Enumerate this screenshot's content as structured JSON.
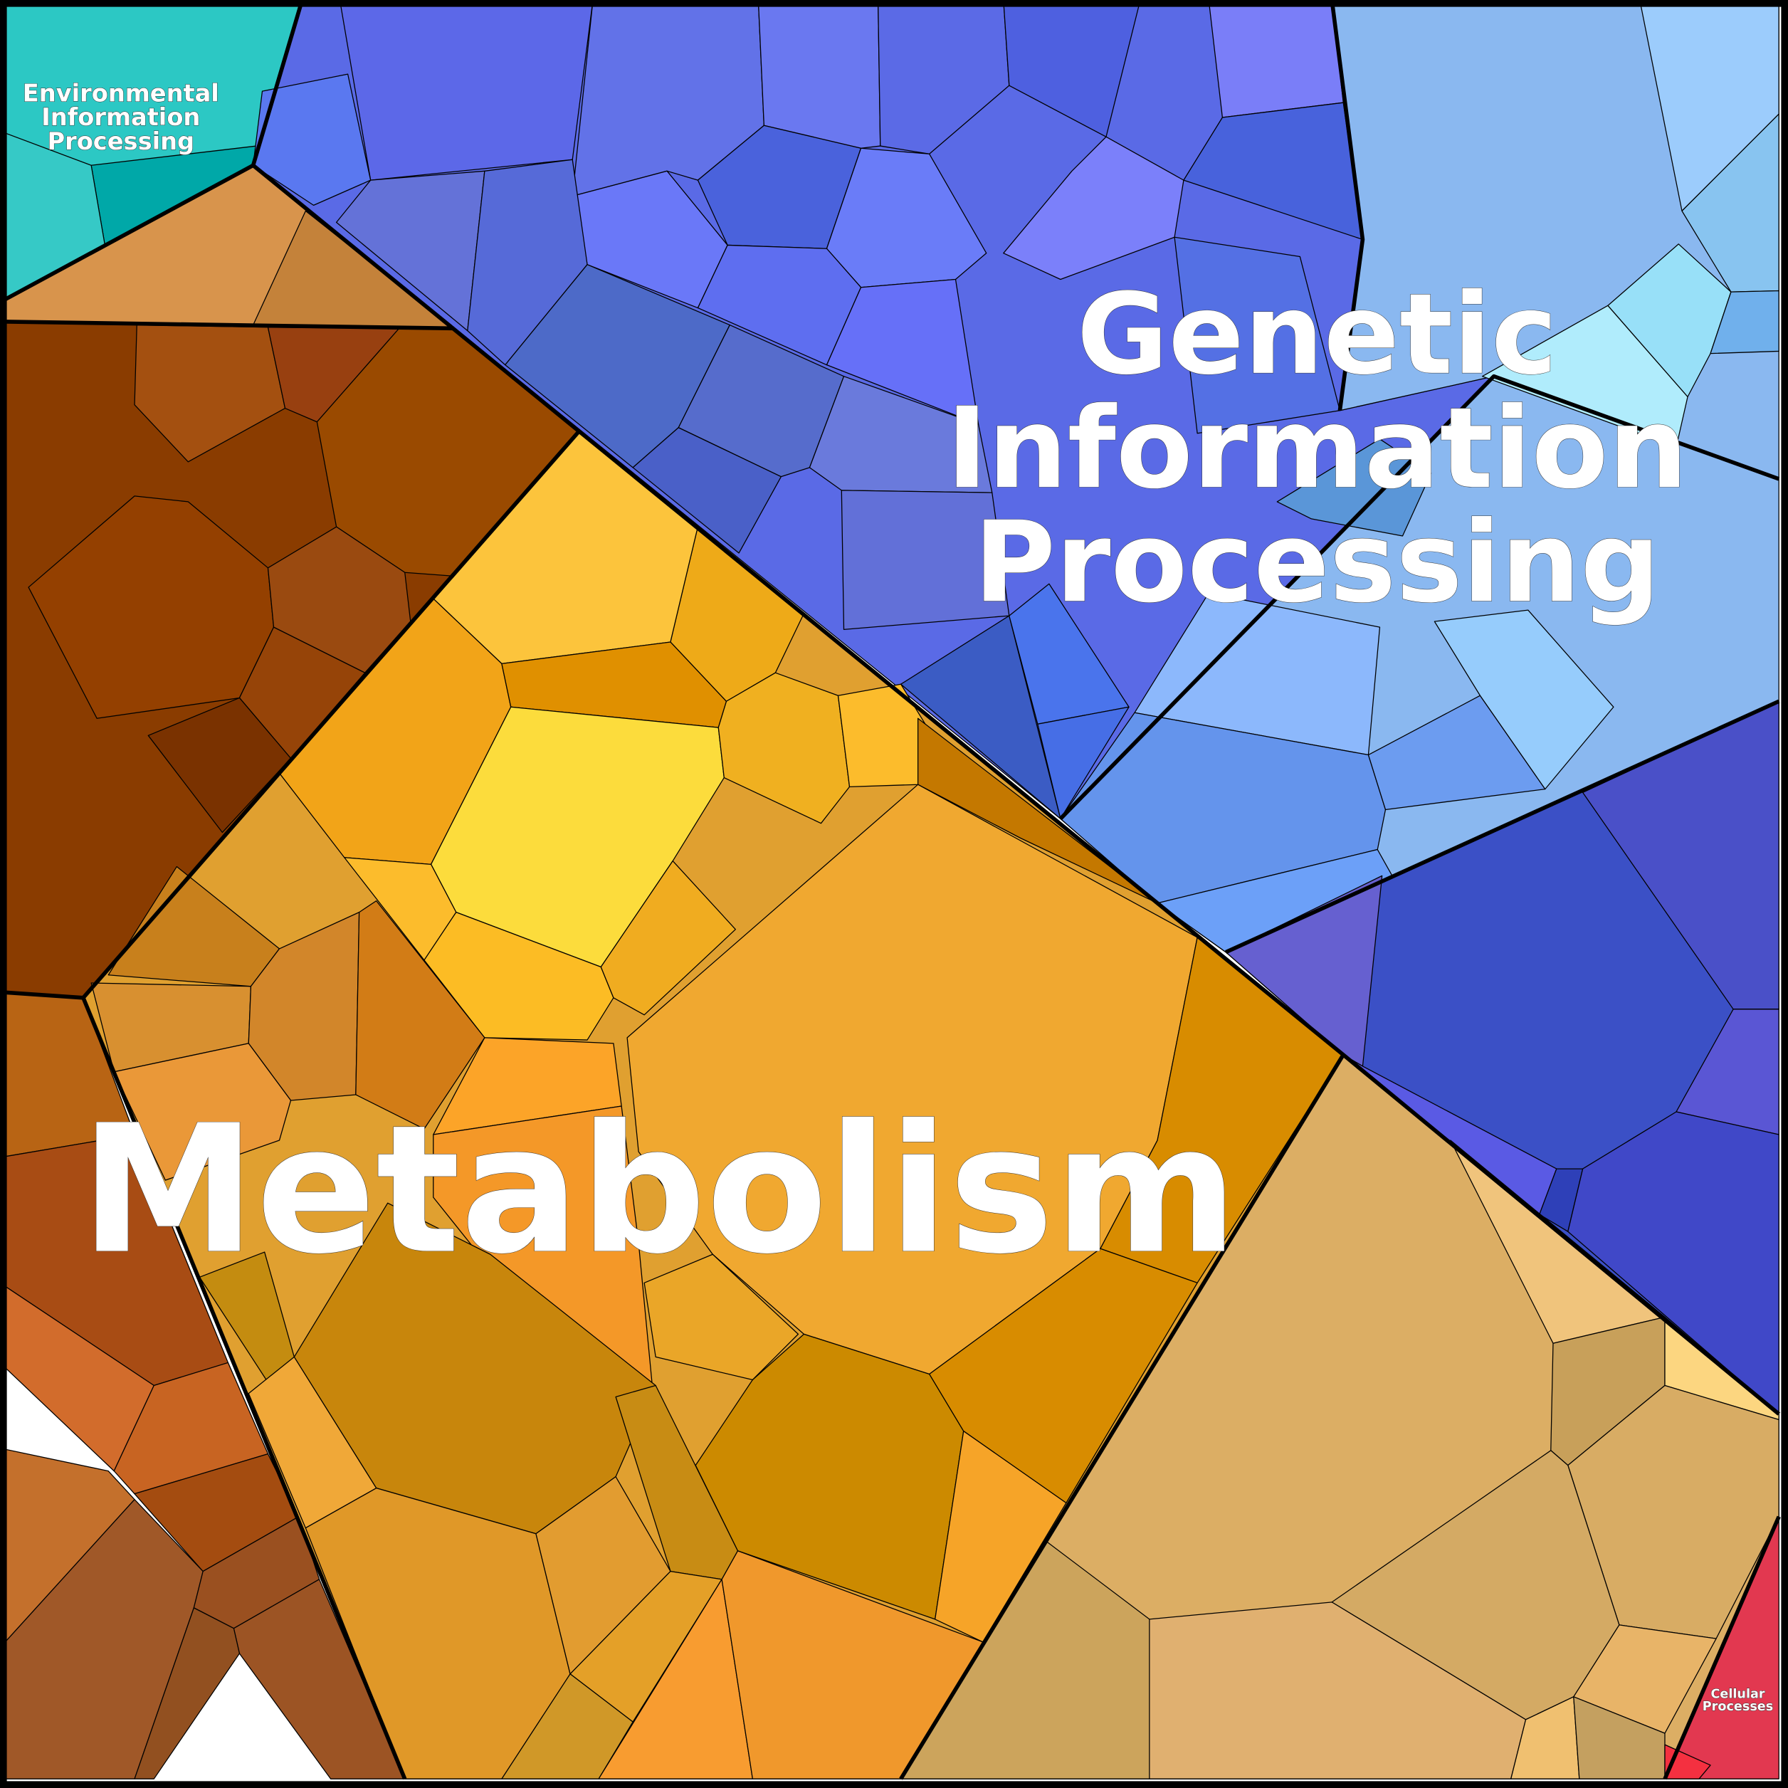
{
  "labels": {
    "environmental": [
      "Environmental",
      "Information",
      "Processing"
    ],
    "genetic": [
      "Genetic",
      "Information",
      "Processing"
    ],
    "metabolism": [
      "Metabolism"
    ],
    "cellular": [
      "Cellular",
      "Processes"
    ]
  }
}
